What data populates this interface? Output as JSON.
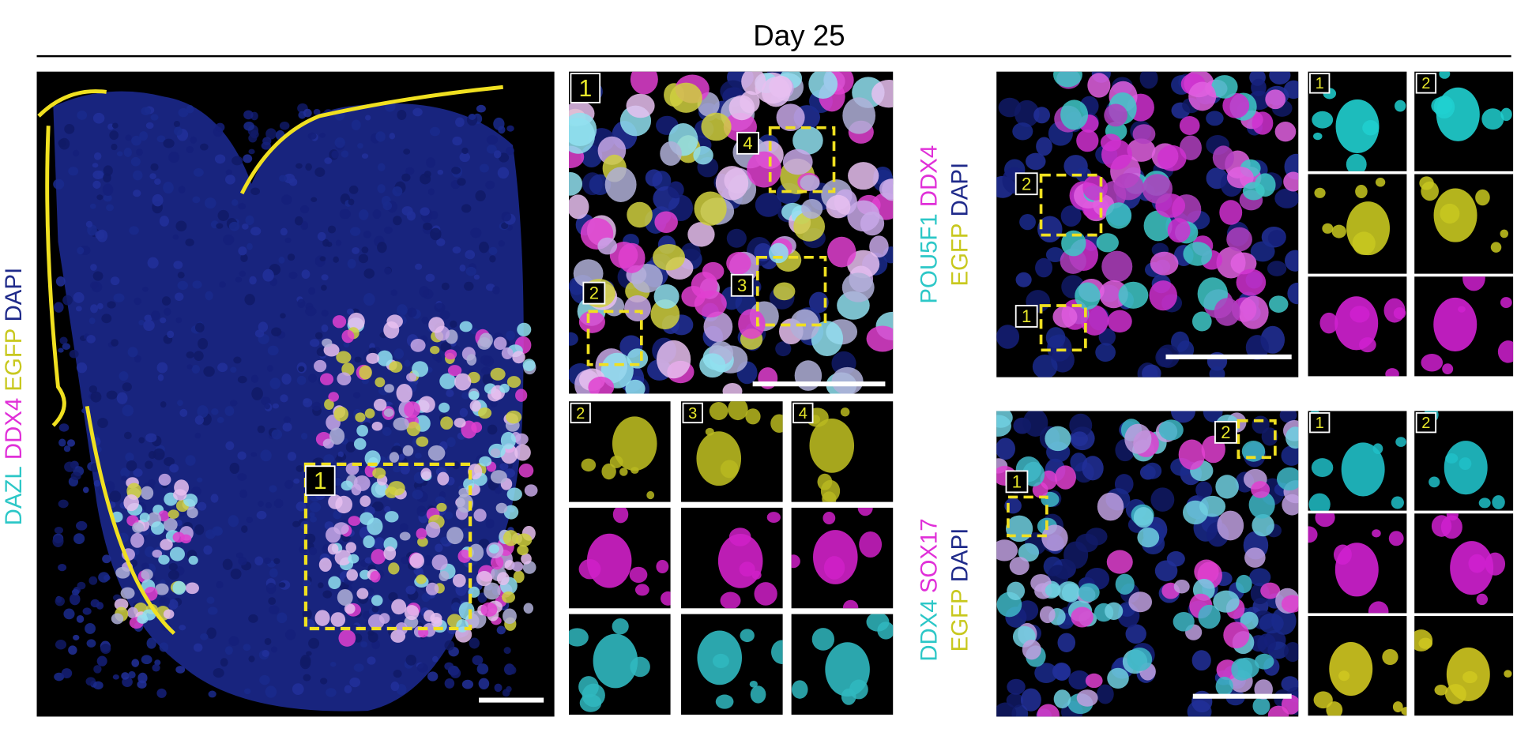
{
  "title": "Day 25",
  "panels": [
    {
      "stain_lines": [
        [
          {
            "text": "DAZL",
            "color": "#2cc7c7"
          },
          {
            "text": "DDX4",
            "color": "#e02fd8"
          },
          {
            "text": "EGFP",
            "color": "#c8c81e"
          },
          {
            "text": "DAPI",
            "color": "#1f2a8a"
          }
        ]
      ],
      "rois": [
        "1"
      ]
    },
    {
      "rois": [
        "1",
        "2",
        "3",
        "4"
      ],
      "insets": [
        "2",
        "3",
        "4"
      ]
    },
    {
      "stain_lines": [
        [
          {
            "text": "POU5F1",
            "color": "#2cc7c7"
          },
          {
            "text": "DDX4",
            "color": "#e02fd8"
          }
        ],
        [
          {
            "text": "EGFP",
            "color": "#c8c81e"
          },
          {
            "text": "DAPI",
            "color": "#1f2a8a"
          }
        ]
      ],
      "rois": [
        "2",
        "1"
      ],
      "insets": [
        "1",
        "2"
      ]
    },
    {
      "stain_lines": [
        [
          {
            "text": "DDX4",
            "color": "#2cc7c7"
          },
          {
            "text": "SOX17",
            "color": "#e02fd8"
          }
        ],
        [
          {
            "text": "EGFP",
            "color": "#c8c81e"
          },
          {
            "text": "DAPI",
            "color": "#1f2a8a"
          }
        ]
      ],
      "rois": [
        "1",
        "2"
      ],
      "insets": [
        "1",
        "2"
      ]
    }
  ]
}
